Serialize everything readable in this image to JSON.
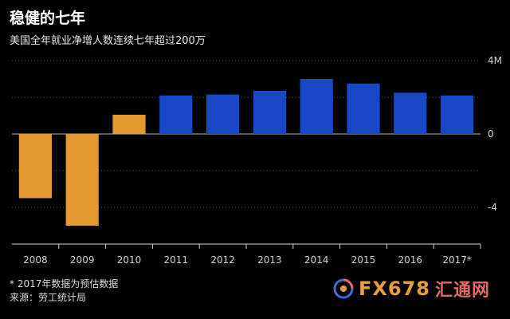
{
  "header": {
    "title": "稳健的七年",
    "subtitle": "美国全年就业净增人数连续七年超过200万"
  },
  "footnotes": {
    "estimate_note": "* 2017年数据为预估数据",
    "source": "来源：劳工统计局"
  },
  "watermark": {
    "brand": "FX678",
    "chinese": "汇通网"
  },
  "colors": {
    "negative": "#E39A31",
    "positive": "#1848C8",
    "background": "#000000",
    "gridline": "#5a5a5a"
  },
  "chart_data": {
    "type": "bar",
    "title": "稳健的七年",
    "subtitle": "美国全年就业净增人数连续七年超过200万",
    "categories": [
      "2008",
      "2009",
      "2010",
      "2011",
      "2012",
      "2013",
      "2014",
      "2015",
      "2016",
      "2017*"
    ],
    "values": [
      -3.5,
      -5.0,
      1.05,
      2.1,
      2.15,
      2.35,
      3.0,
      2.75,
      2.25,
      2.1
    ],
    "y_ticks": [
      {
        "value": 4,
        "label": "4M"
      },
      {
        "value": 0,
        "label": "0"
      },
      {
        "value": -4,
        "label": "-4"
      }
    ],
    "ylim": [
      -6,
      4
    ],
    "xlabel": "",
    "ylabel": "",
    "grid": true,
    "y_axis_position": "right"
  }
}
